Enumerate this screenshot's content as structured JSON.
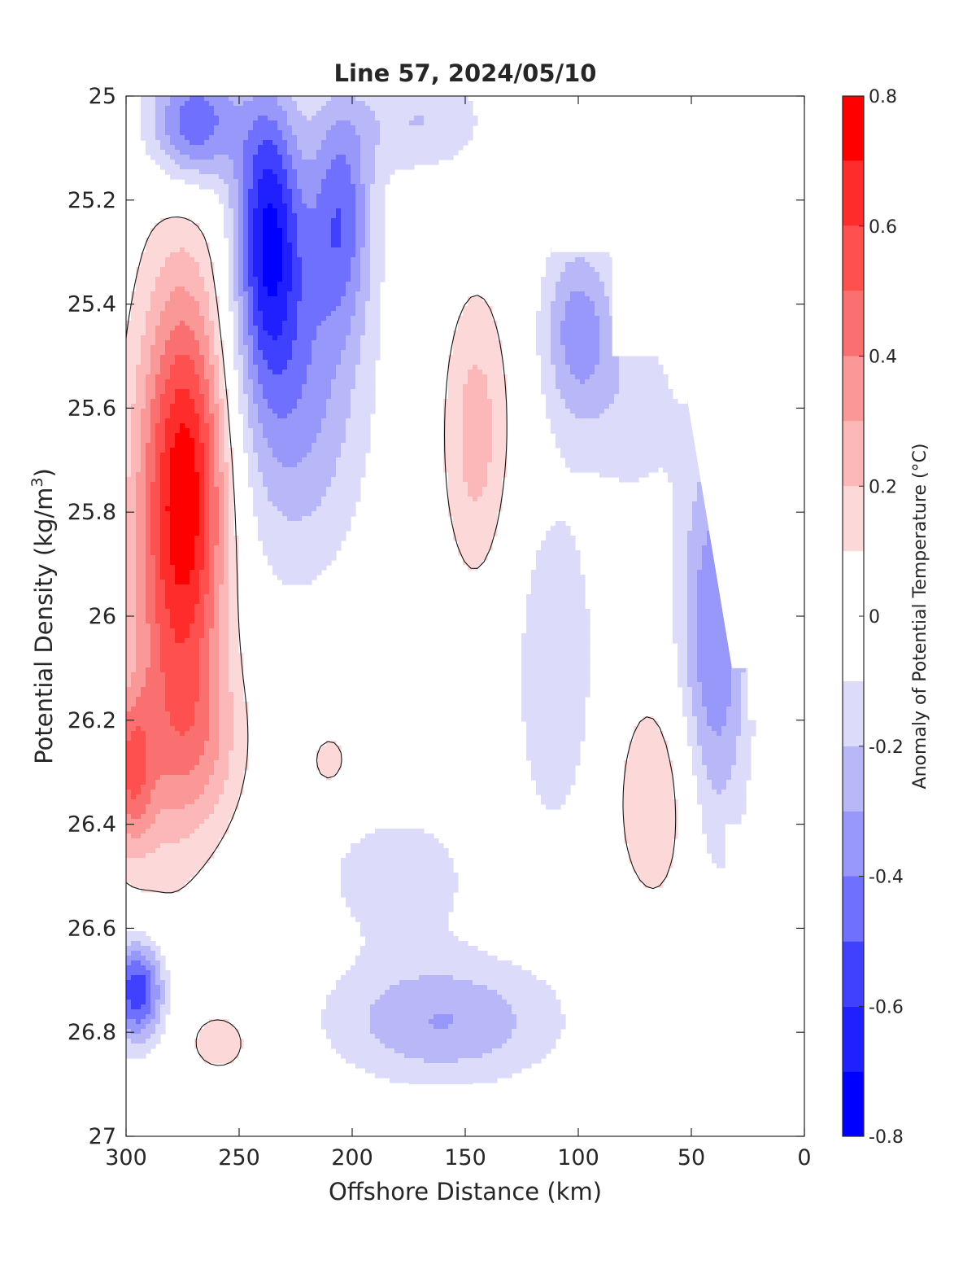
{
  "chart_data": {
    "type": "heatmap",
    "subtype": "filled-contour",
    "title": "Line 57, 2024/05/10",
    "xlabel": "Offshore Distance (km)",
    "ylabel": "Potential Density (kg/m",
    "ylabel_superscript": "3",
    "ylabel_suffix": ")",
    "colorbar_label": "Anomaly of Potential Temperature (°C)",
    "xlim": [
      300,
      0
    ],
    "x_reversed": true,
    "ylim": [
      25,
      27
    ],
    "y_reversed": true,
    "xticks": [
      300,
      250,
      200,
      150,
      100,
      50,
      0
    ],
    "xtick_labels": [
      "300",
      "250",
      "200",
      "150",
      "100",
      "50",
      "0"
    ],
    "yticks": [
      25,
      25.2,
      25.4,
      25.6,
      25.8,
      26,
      26.2,
      26.4,
      26.6,
      26.8,
      27
    ],
    "ytick_labels": [
      "25",
      "25.2",
      "25.4",
      "25.6",
      "25.8",
      "26",
      "26.2",
      "26.4",
      "26.6",
      "26.8",
      "27"
    ],
    "grid": false,
    "colorbar_range": [
      -0.8,
      0.8
    ],
    "colorbar_levels": [
      -0.8,
      -0.7,
      -0.6,
      -0.5,
      -0.4,
      -0.3,
      -0.2,
      -0.1,
      0.1,
      0.2,
      0.3,
      0.4,
      0.5,
      0.6,
      0.7,
      0.8
    ],
    "colorbar_tick_values": [
      0.8,
      0.6,
      0.4,
      0.2,
      0,
      -0.2,
      -0.4,
      -0.6,
      -0.8
    ],
    "colorbar_tick_labels": [
      "0.8",
      "0.6",
      "0.4",
      "0.2",
      "0",
      "-0.2",
      "-0.4",
      "-0.6",
      "-0.8"
    ],
    "colormap": [
      "#0000ff",
      "#2020ff",
      "#4040ff",
      "#7070ff",
      "#9898fa",
      "#b8b8f8",
      "#dcdcfa",
      "#ffffff",
      "#fcd8d8",
      "#fcb8b8",
      "#fa9898",
      "#fa7070",
      "#ff5050",
      "#ff2c2c",
      "#ff0000"
    ],
    "zero_contour": true,
    "data_coverage_bottom": 26.9,
    "data_boundary": [
      [
        300,
        25.0
      ],
      [
        120,
        25.0
      ],
      [
        120,
        25.2
      ],
      [
        112,
        25.2
      ],
      [
        112,
        25.3
      ],
      [
        85,
        25.3
      ],
      [
        85,
        25.5
      ],
      [
        55,
        25.5
      ],
      [
        32,
        26.1
      ],
      [
        25,
        26.1
      ],
      [
        25,
        26.2
      ],
      [
        20,
        26.2
      ],
      [
        20,
        26.4
      ],
      [
        35,
        26.4
      ],
      [
        35,
        26.9
      ],
      [
        300,
        26.9
      ]
    ],
    "anomaly_features": [
      {
        "sign": "warm",
        "x": 272,
        "y": 25.75,
        "rx": 18,
        "ry": 0.4,
        "peak": 0.65
      },
      {
        "sign": "warm",
        "x": 285,
        "y": 25.95,
        "rx": 20,
        "ry": 0.55,
        "peak": 0.25
      },
      {
        "sign": "warm",
        "x": 268,
        "y": 26.25,
        "rx": 22,
        "ry": 0.18,
        "peak": 0.22
      },
      {
        "sign": "warm",
        "x": 298,
        "y": 26.3,
        "rx": 10,
        "ry": 0.15,
        "peak": 0.4
      },
      {
        "sign": "warm",
        "x": 145,
        "y": 25.65,
        "rx": 15,
        "ry": 0.28,
        "peak": 0.25
      },
      {
        "sign": "warm",
        "x": 65,
        "y": 26.35,
        "rx": 20,
        "ry": 0.22,
        "peak": 0.2
      },
      {
        "sign": "warm",
        "x": 258,
        "y": 26.82,
        "rx": 16,
        "ry": 0.07,
        "peak": 0.15
      },
      {
        "sign": "warm",
        "x": 210,
        "y": 26.28,
        "rx": 12,
        "ry": 0.08,
        "peak": 0.14
      },
      {
        "sign": "cool",
        "x": 237,
        "y": 25.25,
        "rx": 14,
        "ry": 0.27,
        "peak": -0.6
      },
      {
        "sign": "cool",
        "x": 270,
        "y": 25.05,
        "rx": 20,
        "ry": 0.12,
        "peak": -0.5
      },
      {
        "sign": "cool",
        "x": 205,
        "y": 25.22,
        "rx": 14,
        "ry": 0.22,
        "peak": -0.4
      },
      {
        "sign": "cool",
        "x": 225,
        "y": 25.55,
        "rx": 30,
        "ry": 0.35,
        "peak": -0.35
      },
      {
        "sign": "cool",
        "x": 100,
        "y": 25.45,
        "rx": 16,
        "ry": 0.18,
        "peak": -0.35
      },
      {
        "sign": "cool",
        "x": 40,
        "y": 26.05,
        "rx": 16,
        "ry": 0.4,
        "peak": -0.4
      },
      {
        "sign": "cool",
        "x": 295,
        "y": 26.72,
        "rx": 12,
        "ry": 0.1,
        "peak": -0.6
      },
      {
        "sign": "cool",
        "x": 160,
        "y": 26.78,
        "rx": 50,
        "ry": 0.12,
        "peak": -0.3
      },
      {
        "sign": "cool",
        "x": 180,
        "y": 26.5,
        "rx": 40,
        "ry": 0.15,
        "peak": -0.15
      },
      {
        "sign": "cool",
        "x": 110,
        "y": 26.1,
        "rx": 20,
        "ry": 0.35,
        "peak": -0.18
      },
      {
        "sign": "cool",
        "x": 75,
        "y": 25.6,
        "rx": 20,
        "ry": 0.2,
        "peak": -0.15
      },
      {
        "sign": "cool",
        "x": 170,
        "y": 25.05,
        "rx": 30,
        "ry": 0.1,
        "peak": -0.2
      }
    ]
  }
}
